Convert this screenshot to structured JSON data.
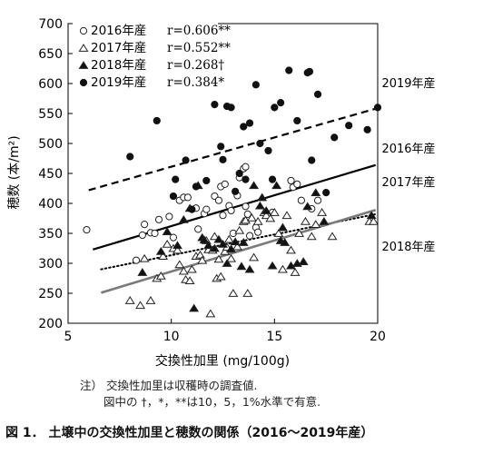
{
  "chart_data": {
    "type": "scatter",
    "xlabel": "交換性加里 (mg/100g)",
    "ylabel": "穂数 (本/m²)",
    "xlim": [
      5,
      20
    ],
    "ylim": [
      200,
      700
    ],
    "x_ticks": [
      "5",
      "10",
      "15",
      "20"
    ],
    "y_ticks": [
      "200",
      "250",
      "300",
      "350",
      "400",
      "450",
      "500",
      "550",
      "600",
      "650",
      "700"
    ],
    "legend_position": "top-left",
    "legend": [
      {
        "label": "2016年産",
        "stat": "r=0.606**",
        "marker": "open-circle"
      },
      {
        "label": "2017年産",
        "stat": "r=0.552**",
        "marker": "open-triangle"
      },
      {
        "label": "2018年産",
        "stat": "r=0.268†",
        "marker": "filled-triangle"
      },
      {
        "label": "2019年産",
        "stat": "r=0.384*",
        "marker": "filled-circle"
      }
    ],
    "series": [
      {
        "name": "2016年産",
        "marker": "open-circle",
        "line_style": "solid-black",
        "line_label": "2016年産",
        "trend": [
          [
            6.2,
            323
          ],
          [
            19.9,
            464
          ]
        ],
        "points": [
          [
            5.9,
            356
          ],
          [
            8.3,
            305
          ],
          [
            8.6,
            347
          ],
          [
            8.7,
            365
          ],
          [
            9.0,
            351
          ],
          [
            9.2,
            350
          ],
          [
            9.4,
            373
          ],
          [
            9.9,
            378
          ],
          [
            10.1,
            343
          ],
          [
            10.4,
            405
          ],
          [
            10.6,
            410
          ],
          [
            10.8,
            410
          ],
          [
            11.2,
            392
          ],
          [
            11.3,
            357
          ],
          [
            11.6,
            383
          ],
          [
            11.7,
            390
          ],
          [
            12.1,
            412
          ],
          [
            12.3,
            405
          ],
          [
            12.4,
            428
          ],
          [
            12.5,
            380
          ],
          [
            12.6,
            432
          ],
          [
            12.8,
            396
          ],
          [
            12.9,
            388
          ],
          [
            13.0,
            350
          ],
          [
            13.2,
            413
          ],
          [
            13.3,
            443
          ],
          [
            13.5,
            458
          ],
          [
            13.6,
            461
          ],
          [
            13.6,
            395
          ],
          [
            13.7,
            382
          ],
          [
            13.8,
            346
          ],
          [
            14.1,
            360
          ],
          [
            14.2,
            352
          ],
          [
            14.9,
            385
          ],
          [
            15.8,
            438
          ],
          [
            15.9,
            427
          ],
          [
            16.1,
            432
          ],
          [
            16.3,
            405
          ],
          [
            16.8,
            391
          ],
          [
            17.1,
            405
          ]
        ]
      },
      {
        "name": "2017年産",
        "marker": "open-triangle",
        "line_style": "dotted-black",
        "line_label": "2017年産",
        "trend": [
          [
            6.6,
            290
          ],
          [
            19.9,
            382
          ]
        ],
        "points": [
          [
            8.0,
            238
          ],
          [
            8.5,
            230
          ],
          [
            8.7,
            308
          ],
          [
            9.0,
            238
          ],
          [
            9.3,
            275
          ],
          [
            9.5,
            279
          ],
          [
            9.6,
            312
          ],
          [
            9.8,
            332
          ],
          [
            10.1,
            325
          ],
          [
            10.3,
            322
          ],
          [
            10.4,
            298
          ],
          [
            10.6,
            287
          ],
          [
            10.7,
            273
          ],
          [
            10.9,
            271
          ],
          [
            11.0,
            290
          ],
          [
            11.2,
            312
          ],
          [
            11.4,
            314
          ],
          [
            11.5,
            305
          ],
          [
            11.7,
            338
          ],
          [
            11.8,
            323
          ],
          [
            11.9,
            216
          ],
          [
            12.0,
            322
          ],
          [
            12.1,
            345
          ],
          [
            12.2,
            275
          ],
          [
            12.3,
            307
          ],
          [
            12.4,
            278
          ],
          [
            12.6,
            320
          ],
          [
            12.7,
            327
          ],
          [
            12.8,
            340
          ],
          [
            12.9,
            308
          ],
          [
            13.0,
            250
          ],
          [
            13.2,
            328
          ],
          [
            13.3,
            355
          ],
          [
            13.5,
            370
          ],
          [
            13.6,
            372
          ],
          [
            13.7,
            250
          ],
          [
            13.9,
            376
          ],
          [
            14.0,
            310
          ],
          [
            14.2,
            370
          ],
          [
            14.5,
            385
          ],
          [
            14.6,
            380
          ],
          [
            14.8,
            375
          ],
          [
            15.0,
            385
          ],
          [
            15.2,
            350
          ],
          [
            15.4,
            290
          ],
          [
            15.6,
            380
          ],
          [
            15.8,
            322
          ],
          [
            16.0,
            285
          ],
          [
            16.2,
            350
          ],
          [
            16.5,
            370
          ],
          [
            16.8,
            345
          ],
          [
            17.0,
            365
          ],
          [
            17.3,
            385
          ],
          [
            17.8,
            345
          ],
          [
            19.6,
            370
          ],
          [
            19.8,
            370
          ]
        ]
      },
      {
        "name": "2018年産",
        "marker": "filled-triangle",
        "line_style": "solid-gray",
        "line_label": "2018年産",
        "trend": [
          [
            6.6,
            251
          ],
          [
            19.9,
            389
          ]
        ],
        "points": [
          [
            8.6,
            285
          ],
          [
            9.5,
            320
          ],
          [
            9.8,
            353
          ],
          [
            10.3,
            330
          ],
          [
            10.6,
            373
          ],
          [
            10.9,
            392
          ],
          [
            11.1,
            225
          ],
          [
            11.3,
            430
          ],
          [
            11.5,
            343
          ],
          [
            11.6,
            339
          ],
          [
            11.8,
            330
          ],
          [
            12.1,
            325
          ],
          [
            12.3,
            340
          ],
          [
            12.5,
            332
          ],
          [
            12.7,
            300
          ],
          [
            12.9,
            324
          ],
          [
            13.1,
            336
          ],
          [
            13.4,
            295
          ],
          [
            13.5,
            335
          ],
          [
            13.8,
            290
          ],
          [
            14.0,
            430
          ],
          [
            14.3,
            396
          ],
          [
            14.4,
            410
          ],
          [
            14.6,
            388
          ],
          [
            14.9,
            296
          ],
          [
            15.1,
            430
          ],
          [
            15.3,
            338
          ],
          [
            15.4,
            360
          ],
          [
            15.5,
            335
          ],
          [
            15.8,
            296
          ],
          [
            16.1,
            300
          ],
          [
            16.4,
            303
          ],
          [
            16.6,
            395
          ],
          [
            17.0,
            418
          ],
          [
            17.4,
            370
          ],
          [
            19.7,
            380
          ]
        ]
      },
      {
        "name": "2019年産",
        "marker": "filled-circle",
        "line_style": "dashed-black",
        "line_label": "2019年産",
        "trend": [
          [
            6.0,
            422
          ],
          [
            20.0,
            559
          ]
        ],
        "points": [
          [
            8.0,
            478
          ],
          [
            9.3,
            538
          ],
          [
            10.1,
            412
          ],
          [
            10.2,
            440
          ],
          [
            10.7,
            472
          ],
          [
            11.0,
            390
          ],
          [
            11.2,
            428
          ],
          [
            11.7,
            438
          ],
          [
            12.1,
            565
          ],
          [
            12.4,
            495
          ],
          [
            12.5,
            473
          ],
          [
            12.7,
            562
          ],
          [
            12.9,
            560
          ],
          [
            13.1,
            420
          ],
          [
            13.3,
            450
          ],
          [
            13.5,
            528
          ],
          [
            13.6,
            440
          ],
          [
            13.8,
            534
          ],
          [
            14.1,
            598
          ],
          [
            14.3,
            500
          ],
          [
            14.7,
            488
          ],
          [
            14.9,
            440
          ],
          [
            15.0,
            560
          ],
          [
            15.3,
            568
          ],
          [
            15.7,
            622
          ],
          [
            16.1,
            538
          ],
          [
            16.6,
            618
          ],
          [
            16.7,
            620
          ],
          [
            16.8,
            472
          ],
          [
            17.1,
            582
          ],
          [
            17.5,
            418
          ],
          [
            17.9,
            510
          ],
          [
            18.6,
            530
          ],
          [
            19.5,
            523
          ],
          [
            20.0,
            560
          ]
        ]
      }
    ]
  },
  "notes": [
    "注） 交換性加里は収穫時の調査値.",
    "図中の †，*，**は10，5，1%水準で有意."
  ],
  "caption": "図 1． 土壌中の交換性加里と穂数の関係（2016～2019年産）"
}
